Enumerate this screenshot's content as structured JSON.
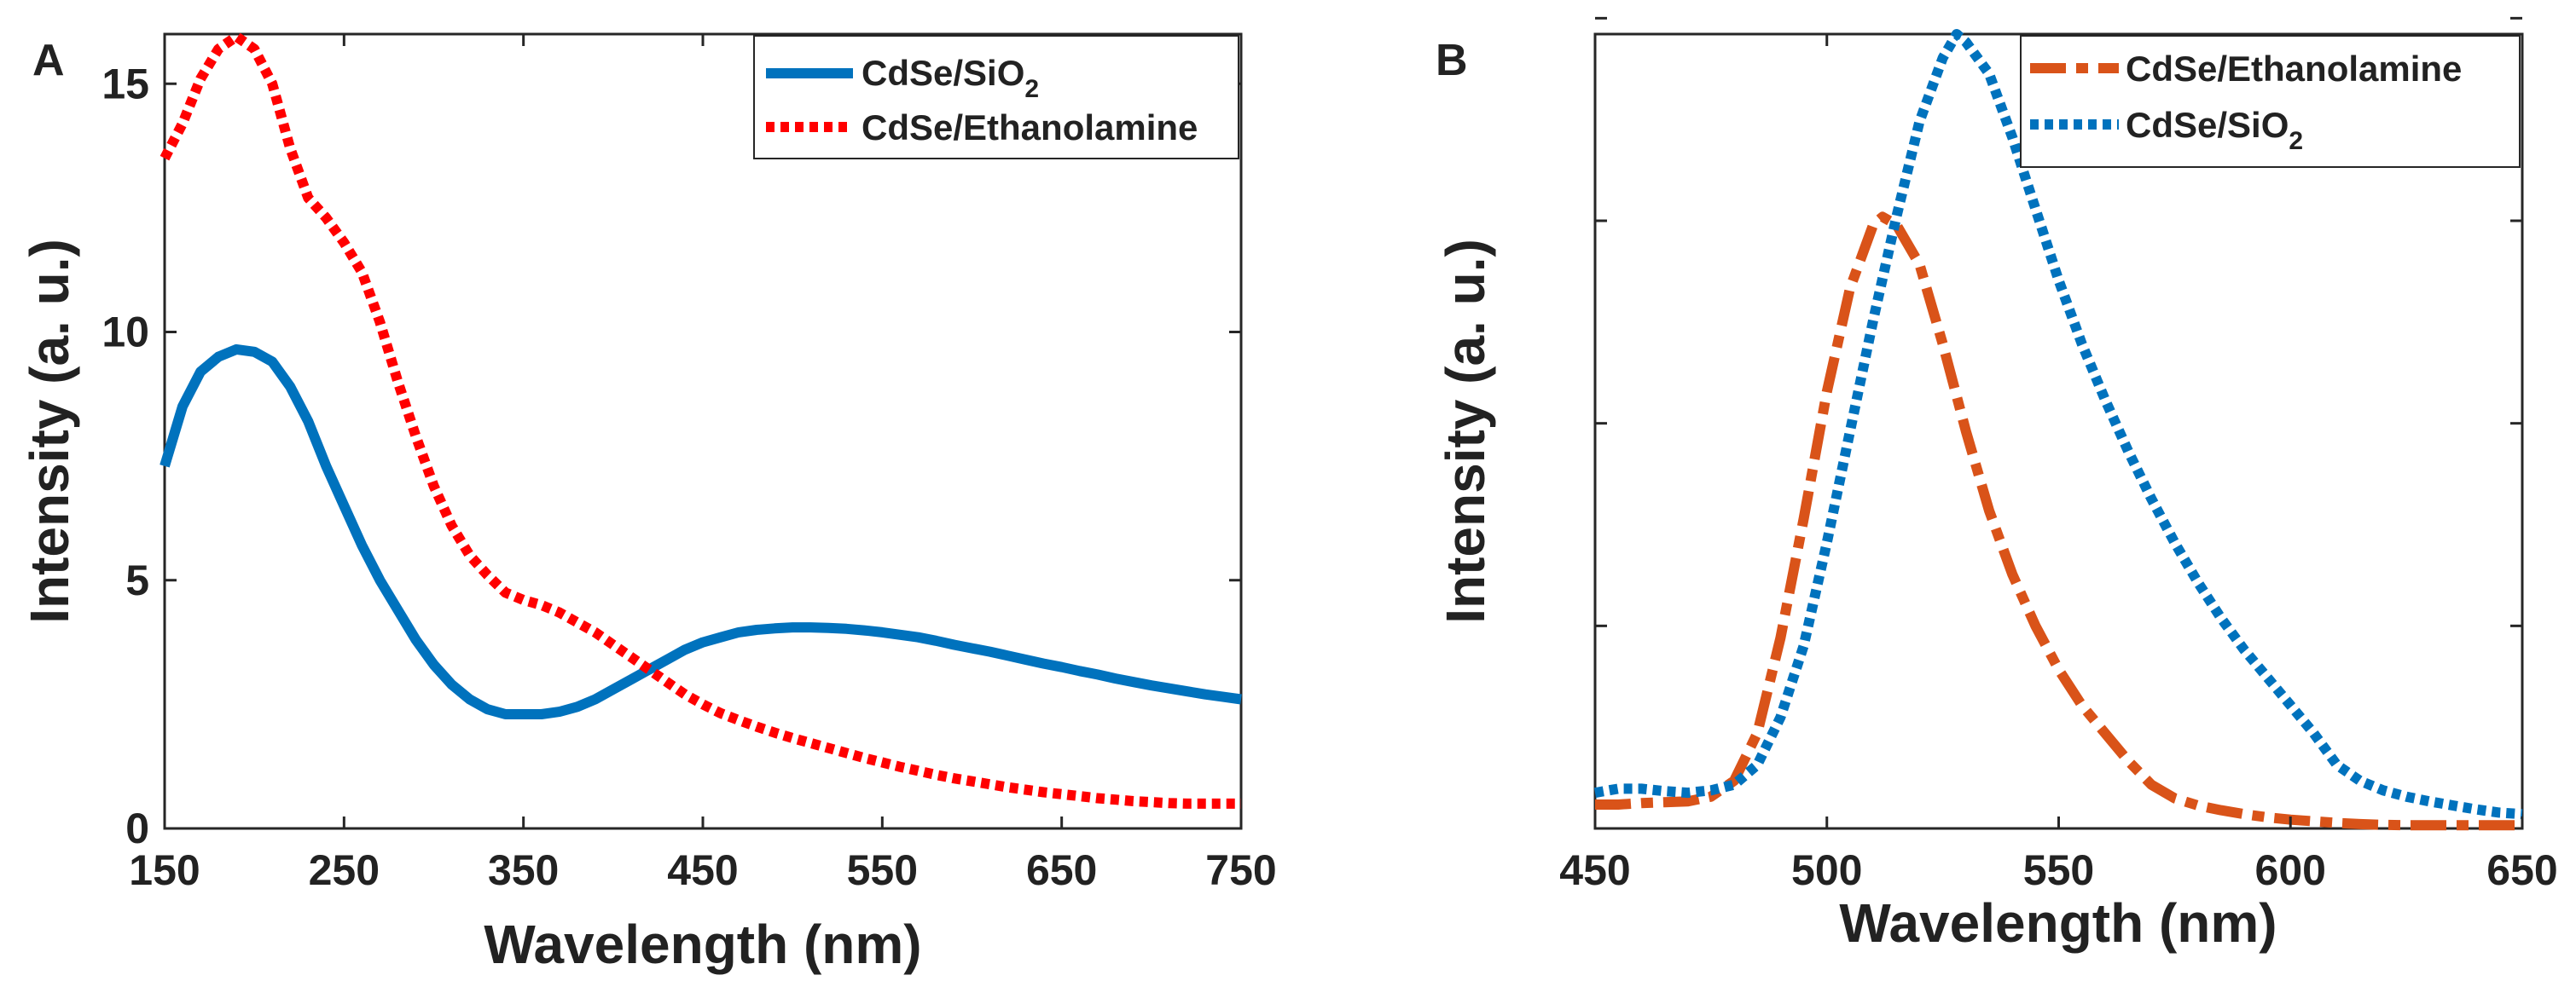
{
  "figure": {
    "panels": [
      "A",
      "B"
    ]
  },
  "chart_data": [
    {
      "panel": "A",
      "type": "line",
      "title": "",
      "xlabel": "Wavelength (nm)",
      "ylabel": "Intensity (a. u.)",
      "xlim": [
        150,
        750
      ],
      "ylim": [
        0,
        16
      ],
      "xticks": [
        150,
        250,
        350,
        450,
        550,
        650,
        750
      ],
      "yticks": [
        0,
        5,
        10,
        15
      ],
      "legend_position": "top-right",
      "series": [
        {
          "name": "CdSe/SiO2",
          "label_main": "CdSe/SiO",
          "label_sub": "2",
          "color": "#0072BD",
          "style": "solid",
          "x": [
            150,
            160,
            170,
            180,
            190,
            200,
            210,
            220,
            230,
            240,
            250,
            260,
            270,
            280,
            290,
            300,
            310,
            320,
            330,
            340,
            350,
            360,
            370,
            380,
            390,
            400,
            410,
            420,
            430,
            440,
            450,
            460,
            470,
            480,
            490,
            500,
            510,
            520,
            530,
            540,
            550,
            560,
            570,
            580,
            590,
            600,
            610,
            620,
            630,
            640,
            650,
            660,
            670,
            680,
            690,
            700,
            710,
            720,
            730,
            740,
            750
          ],
          "y": [
            7.3,
            8.5,
            9.2,
            9.5,
            9.65,
            9.6,
            9.4,
            8.9,
            8.2,
            7.3,
            6.5,
            5.7,
            5.0,
            4.4,
            3.8,
            3.3,
            2.9,
            2.6,
            2.4,
            2.3,
            2.3,
            2.3,
            2.35,
            2.45,
            2.6,
            2.8,
            3.0,
            3.2,
            3.4,
            3.6,
            3.75,
            3.85,
            3.95,
            4.0,
            4.03,
            4.05,
            4.05,
            4.04,
            4.02,
            3.99,
            3.95,
            3.9,
            3.85,
            3.78,
            3.7,
            3.63,
            3.56,
            3.48,
            3.4,
            3.32,
            3.25,
            3.17,
            3.1,
            3.02,
            2.95,
            2.88,
            2.82,
            2.76,
            2.7,
            2.65,
            2.6
          ]
        },
        {
          "name": "CdSe/Ethanolamine",
          "label_main": "CdSe/Ethanolamine",
          "label_sub": "",
          "color": "#FF0000",
          "style": "dotted",
          "x": [
            150,
            160,
            170,
            180,
            190,
            200,
            210,
            220,
            230,
            240,
            250,
            260,
            270,
            280,
            290,
            300,
            310,
            320,
            330,
            340,
            350,
            360,
            370,
            380,
            390,
            400,
            410,
            420,
            430,
            440,
            450,
            460,
            470,
            480,
            490,
            500,
            510,
            520,
            530,
            540,
            550,
            560,
            570,
            580,
            590,
            600,
            610,
            620,
            630,
            640,
            650,
            660,
            670,
            680,
            690,
            700,
            710,
            720,
            730,
            740,
            750
          ],
          "y": [
            13.5,
            14.2,
            15.1,
            15.7,
            15.95,
            15.7,
            15.0,
            13.7,
            12.7,
            12.3,
            11.8,
            11.2,
            10.2,
            9.0,
            7.9,
            6.9,
            6.1,
            5.5,
            5.1,
            4.75,
            4.6,
            4.5,
            4.35,
            4.15,
            3.95,
            3.7,
            3.45,
            3.2,
            2.95,
            2.7,
            2.5,
            2.32,
            2.18,
            2.05,
            1.93,
            1.82,
            1.72,
            1.62,
            1.52,
            1.42,
            1.33,
            1.24,
            1.16,
            1.08,
            1.01,
            0.95,
            0.89,
            0.83,
            0.78,
            0.73,
            0.69,
            0.65,
            0.61,
            0.58,
            0.55,
            0.53,
            0.51,
            0.5,
            0.5,
            0.5,
            0.5
          ]
        }
      ]
    },
    {
      "panel": "B",
      "type": "line",
      "title": "",
      "xlabel": "Wavelength (nm)",
      "ylabel": "Intensity (a. u.)",
      "xlim": [
        450,
        650
      ],
      "ylim": [
        0,
        100
      ],
      "xticks": [
        450,
        500,
        550,
        600,
        650
      ],
      "yticks": [],
      "legend_position": "top-right",
      "series": [
        {
          "name": "CdSe/Ethanolamine",
          "label_main": "CdSe/Ethanolamine",
          "label_sub": "",
          "color": "#D95319",
          "style": "dashdot",
          "x": [
            450,
            455,
            460,
            465,
            470,
            475,
            480,
            485,
            490,
            495,
            500,
            505,
            510,
            512,
            515,
            520,
            525,
            530,
            535,
            540,
            545,
            550,
            555,
            560,
            565,
            570,
            575,
            580,
            585,
            590,
            595,
            600,
            605,
            610,
            615,
            620,
            625,
            630,
            635,
            640,
            645,
            650
          ],
          "y": [
            3.0,
            3.0,
            3.2,
            3.3,
            3.4,
            4.0,
            6.0,
            12.0,
            24.0,
            39.0,
            55.0,
            68.0,
            76.0,
            77.0,
            76.0,
            71.0,
            61.0,
            50.0,
            40.0,
            32.0,
            25.5,
            20.0,
            15.5,
            12.0,
            8.5,
            5.5,
            3.8,
            2.9,
            2.3,
            1.8,
            1.4,
            1.1,
            0.9,
            0.7,
            0.55,
            0.45,
            0.4,
            0.4,
            0.4,
            0.4,
            0.4,
            0.4
          ]
        },
        {
          "name": "CdSe/SiO2",
          "label_main": "CdSe/SiO",
          "label_sub": "2",
          "color": "#0072BD",
          "style": "dotted",
          "x": [
            450,
            455,
            460,
            465,
            470,
            475,
            480,
            485,
            490,
            495,
            500,
            505,
            510,
            515,
            520,
            525,
            528,
            530,
            535,
            540,
            545,
            550,
            555,
            560,
            565,
            570,
            575,
            580,
            585,
            590,
            595,
            600,
            605,
            610,
            615,
            620,
            625,
            630,
            635,
            640,
            645,
            650
          ],
          "y": [
            4.5,
            5.0,
            5.0,
            4.7,
            4.5,
            4.8,
            5.5,
            8.0,
            14.0,
            23.0,
            36.0,
            50.0,
            64.0,
            77.0,
            89.0,
            97.0,
            100.0,
            99.0,
            95.0,
            87.0,
            78.0,
            69.0,
            61.0,
            54.0,
            47.5,
            41.5,
            36.0,
            31.0,
            26.5,
            22.5,
            19.0,
            15.5,
            12.0,
            8.0,
            6.0,
            4.8,
            4.0,
            3.4,
            2.9,
            2.4,
            2.0,
            1.8
          ]
        }
      ]
    }
  ]
}
